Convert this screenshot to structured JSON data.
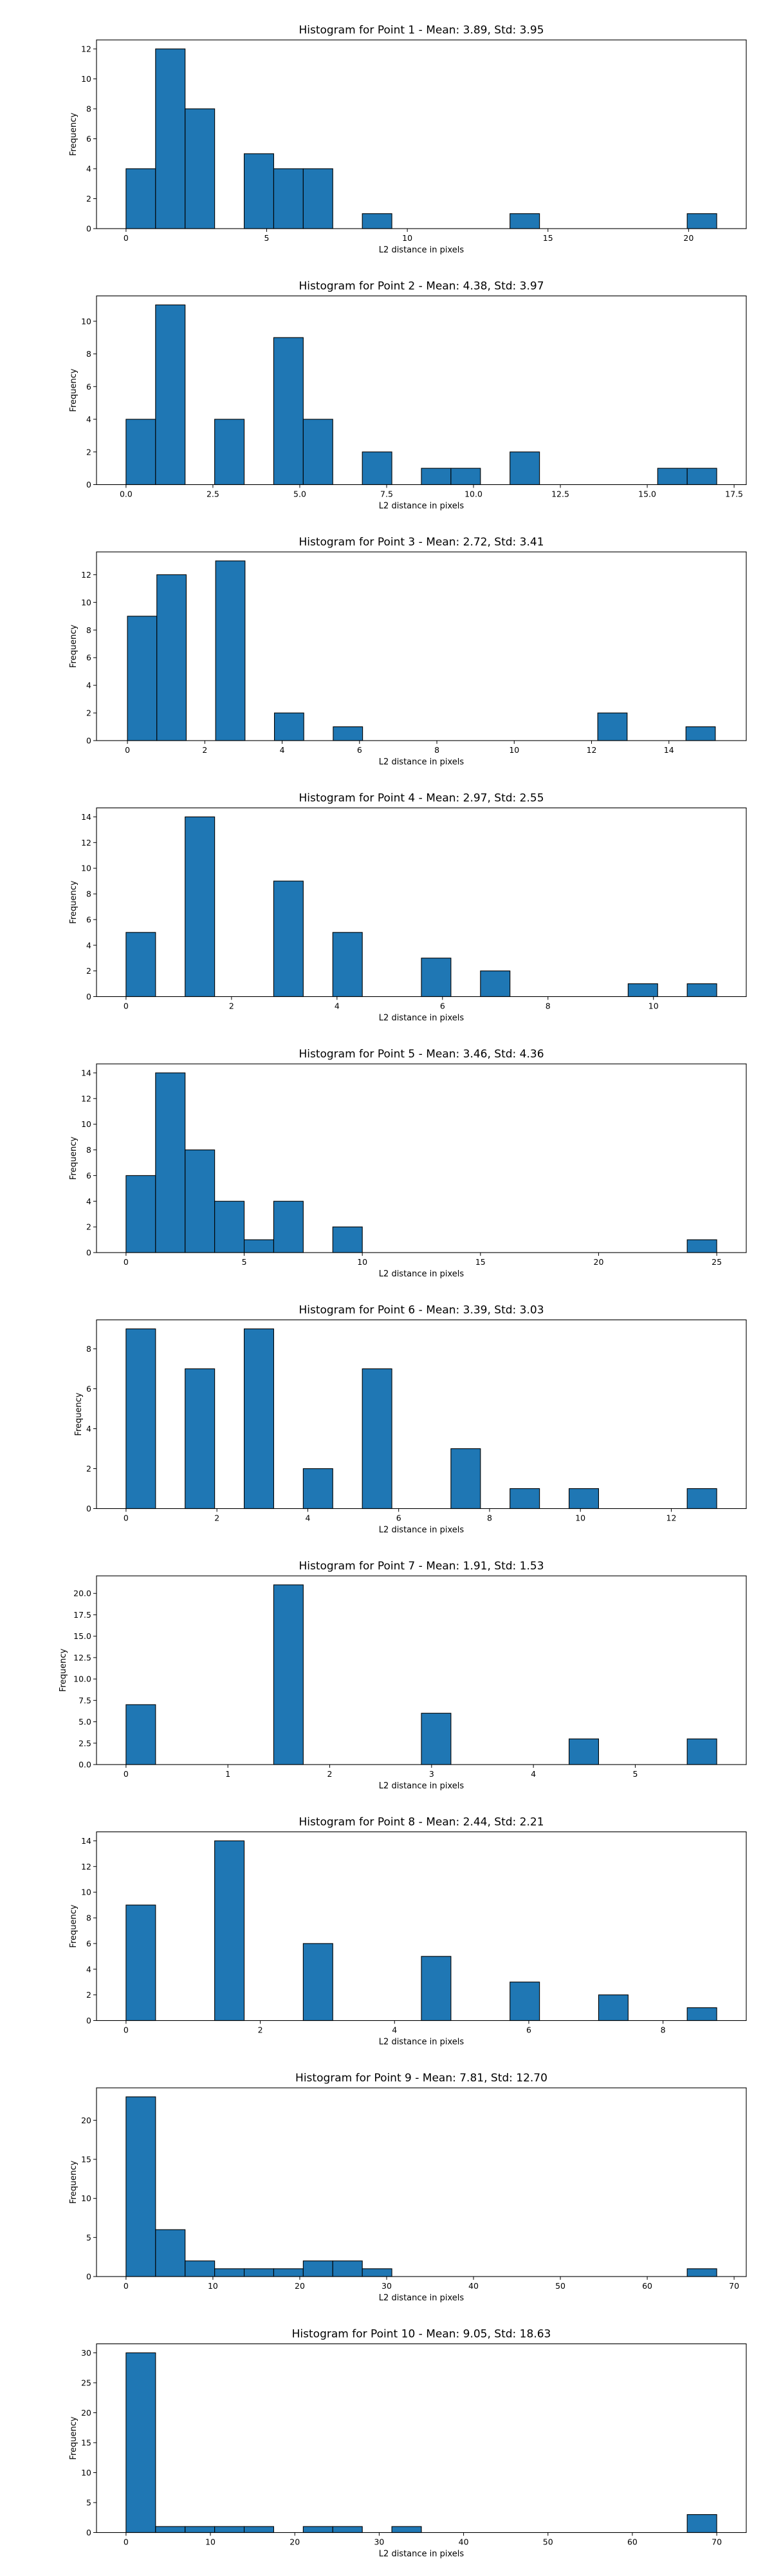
{
  "chart_data": [
    {
      "type": "bar",
      "title": "Histogram for Point 1 - Mean: 3.89, Std: 3.95",
      "xlabel": "L2 distance in pixels",
      "ylabel": "Frequency",
      "xlim": [
        -1.05,
        22.05
      ],
      "ylim": [
        0,
        12.6
      ],
      "xticks": [
        0,
        5,
        10,
        15,
        20
      ],
      "xtick_labels": [
        "0",
        "5",
        "10",
        "15",
        "20"
      ],
      "yticks": [
        0,
        2,
        4,
        6,
        8,
        10,
        12
      ],
      "ytick_labels": [
        "0",
        "2",
        "4",
        "6",
        "8",
        "10",
        "12"
      ],
      "bin_edges": [
        0.0,
        1.05,
        2.1,
        3.15,
        4.2,
        5.25,
        6.3,
        7.35,
        8.4,
        9.45,
        10.5,
        11.55,
        12.6,
        13.65,
        14.7,
        15.75,
        16.8,
        17.85,
        18.9,
        19.95,
        21.0
      ],
      "values": [
        4,
        12,
        8,
        0,
        5,
        4,
        4,
        0,
        1,
        0,
        0,
        0,
        0,
        1,
        0,
        0,
        0,
        0,
        0,
        1
      ],
      "grid": false,
      "legend": false
    },
    {
      "type": "bar",
      "title": "Histogram for Point 2 - Mean: 4.38, Std: 3.97",
      "xlabel": "L2 distance in pixels",
      "ylabel": "Frequency",
      "xlim": [
        -0.85,
        17.85
      ],
      "ylim": [
        0,
        11.55
      ],
      "xticks": [
        0,
        2.5,
        5,
        7.5,
        10,
        12.5,
        15,
        17.5
      ],
      "xtick_labels": [
        "0.0",
        "2.5",
        "5.0",
        "7.5",
        "10.0",
        "12.5",
        "15.0",
        "17.5"
      ],
      "yticks": [
        0,
        2,
        4,
        6,
        8,
        10
      ],
      "ytick_labels": [
        "0",
        "2",
        "4",
        "6",
        "8",
        "10"
      ],
      "bin_edges": [
        0.0,
        0.85,
        1.7,
        2.55,
        3.4,
        4.25,
        5.1,
        5.95,
        6.8,
        7.65,
        8.5,
        9.35,
        10.2,
        11.05,
        11.9,
        12.75,
        13.6,
        14.45,
        15.3,
        16.15,
        17.0
      ],
      "values": [
        4,
        11,
        0,
        4,
        0,
        9,
        4,
        0,
        2,
        0,
        1,
        1,
        0,
        2,
        0,
        0,
        0,
        0,
        1,
        1
      ],
      "grid": false,
      "legend": false
    },
    {
      "type": "bar",
      "title": "Histogram for Point 3 - Mean: 2.72, Std: 3.41",
      "xlabel": "L2 distance in pixels",
      "ylabel": "Frequency",
      "xlim": [
        -0.8,
        16.0
      ],
      "ylim": [
        0,
        13.65
      ],
      "xticks": [
        0,
        2,
        4,
        6,
        8,
        10,
        12,
        14
      ],
      "xtick_labels": [
        "0",
        "2",
        "4",
        "6",
        "8",
        "10",
        "12",
        "14"
      ],
      "yticks": [
        0,
        2,
        4,
        6,
        8,
        10,
        12
      ],
      "ytick_labels": [
        "0",
        "2",
        "4",
        "6",
        "8",
        "10",
        "12"
      ],
      "bin_edges": [
        0.0,
        0.76,
        1.52,
        2.28,
        3.04,
        3.8,
        4.56,
        5.32,
        6.08,
        6.84,
        7.6,
        8.36,
        9.12,
        9.88,
        10.64,
        11.4,
        12.16,
        12.92,
        13.68,
        14.44,
        15.2
      ],
      "values": [
        9,
        12,
        0,
        13,
        0,
        2,
        0,
        1,
        0,
        0,
        0,
        0,
        0,
        0,
        0,
        0,
        2,
        0,
        0,
        1
      ],
      "grid": false,
      "legend": false
    },
    {
      "type": "bar",
      "title": "Histogram for Point 4 - Mean: 2.97, Std: 2.55",
      "xlabel": "L2 distance in pixels",
      "ylabel": "Frequency",
      "xlim": [
        -0.56,
        11.76
      ],
      "ylim": [
        0,
        14.7
      ],
      "xticks": [
        0,
        2,
        4,
        6,
        8,
        10
      ],
      "xtick_labels": [
        "0",
        "2",
        "4",
        "6",
        "8",
        "10"
      ],
      "yticks": [
        0,
        2,
        4,
        6,
        8,
        10,
        12,
        14
      ],
      "ytick_labels": [
        "0",
        "2",
        "4",
        "6",
        "8",
        "10",
        "12",
        "14"
      ],
      "bin_edges": [
        0.0,
        0.56,
        1.12,
        1.68,
        2.24,
        2.8,
        3.36,
        3.92,
        4.48,
        5.04,
        5.6,
        6.16,
        6.72,
        7.28,
        7.84,
        8.4,
        8.96,
        9.52,
        10.08,
        10.64,
        11.2
      ],
      "values": [
        5,
        0,
        14,
        0,
        0,
        9,
        0,
        5,
        0,
        0,
        3,
        0,
        2,
        0,
        0,
        0,
        0,
        1,
        0,
        1
      ],
      "grid": false,
      "legend": false
    },
    {
      "type": "bar",
      "title": "Histogram for Point 5 - Mean: 3.46, Std: 4.36",
      "xlabel": "L2 distance in pixels",
      "ylabel": "Frequency",
      "xlim": [
        -1.25,
        26.25
      ],
      "ylim": [
        0,
        14.7
      ],
      "xticks": [
        0,
        5,
        10,
        15,
        20,
        25
      ],
      "xtick_labels": [
        "0",
        "5",
        "10",
        "15",
        "20",
        "25"
      ],
      "yticks": [
        0,
        2,
        4,
        6,
        8,
        10,
        12,
        14
      ],
      "ytick_labels": [
        "0",
        "2",
        "4",
        "6",
        "8",
        "10",
        "12",
        "14"
      ],
      "bin_edges": [
        0.0,
        1.25,
        2.5,
        3.75,
        5.0,
        6.25,
        7.5,
        8.75,
        10.0,
        11.25,
        12.5,
        13.75,
        15.0,
        16.25,
        17.5,
        18.75,
        20.0,
        21.25,
        22.5,
        23.75,
        25.0
      ],
      "values": [
        6,
        14,
        8,
        4,
        1,
        4,
        0,
        2,
        0,
        0,
        0,
        0,
        0,
        0,
        0,
        0,
        0,
        0,
        0,
        1
      ],
      "grid": false,
      "legend": false
    },
    {
      "type": "bar",
      "title": "Histogram for Point 6 - Mean: 3.39, Std: 3.03",
      "xlabel": "L2 distance in pixels",
      "ylabel": "Frequency",
      "xlim": [
        -0.65,
        13.65
      ],
      "ylim": [
        0,
        9.45
      ],
      "xticks": [
        0,
        2,
        4,
        6,
        8,
        10,
        12
      ],
      "xtick_labels": [
        "0",
        "2",
        "4",
        "6",
        "8",
        "10",
        "12"
      ],
      "yticks": [
        0,
        2,
        4,
        6,
        8
      ],
      "ytick_labels": [
        "0",
        "2",
        "4",
        "6",
        "8"
      ],
      "bin_edges": [
        0.0,
        0.65,
        1.3,
        1.95,
        2.6,
        3.25,
        3.9,
        4.55,
        5.2,
        5.85,
        6.5,
        7.15,
        7.8,
        8.45,
        9.1,
        9.75,
        10.4,
        11.05,
        11.7,
        12.35,
        13.0
      ],
      "values": [
        9,
        0,
        7,
        0,
        9,
        0,
        2,
        0,
        7,
        0,
        0,
        3,
        0,
        1,
        0,
        1,
        0,
        0,
        0,
        1
      ],
      "grid": false,
      "legend": false
    },
    {
      "type": "bar",
      "title": "Histogram for Point 7 - Mean: 1.91, Std: 1.53",
      "xlabel": "L2 distance in pixels",
      "ylabel": "Frequency",
      "xlim": [
        -0.29,
        6.09
      ],
      "ylim": [
        0,
        22.05
      ],
      "xticks": [
        0,
        1,
        2,
        3,
        4,
        5
      ],
      "xtick_labels": [
        "0",
        "1",
        "2",
        "3",
        "4",
        "5"
      ],
      "yticks": [
        0,
        2.5,
        5,
        7.5,
        10,
        12.5,
        15,
        17.5,
        20
      ],
      "ytick_labels": [
        "0.0",
        "2.5",
        "5.0",
        "7.5",
        "10.0",
        "12.5",
        "15.0",
        "17.5",
        "20.0"
      ],
      "bin_edges": [
        0.0,
        0.29,
        0.58,
        0.87,
        1.16,
        1.45,
        1.74,
        2.03,
        2.32,
        2.61,
        2.9,
        3.19,
        3.48,
        3.77,
        4.06,
        4.35,
        4.64,
        4.93,
        5.22,
        5.51,
        5.8
      ],
      "values": [
        7,
        0,
        0,
        0,
        0,
        21,
        0,
        0,
        0,
        0,
        6,
        0,
        0,
        0,
        0,
        3,
        0,
        0,
        0,
        3
      ],
      "grid": false,
      "legend": false
    },
    {
      "type": "bar",
      "title": "Histogram for Point 8 - Mean: 2.44, Std: 2.21",
      "xlabel": "L2 distance in pixels",
      "ylabel": "Frequency",
      "xlim": [
        -0.44,
        9.24
      ],
      "ylim": [
        0,
        14.7
      ],
      "xticks": [
        0,
        2,
        4,
        6,
        8
      ],
      "xtick_labels": [
        "0",
        "2",
        "4",
        "6",
        "8"
      ],
      "yticks": [
        0,
        2,
        4,
        6,
        8,
        10,
        12,
        14
      ],
      "ytick_labels": [
        "0",
        "2",
        "4",
        "6",
        "8",
        "10",
        "12",
        "14"
      ],
      "bin_edges": [
        0.0,
        0.44,
        0.88,
        1.32,
        1.76,
        2.2,
        2.64,
        3.08,
        3.52,
        3.96,
        4.4,
        4.84,
        5.28,
        5.72,
        6.16,
        6.6,
        7.04,
        7.48,
        7.92,
        8.36,
        8.8
      ],
      "values": [
        9,
        0,
        0,
        14,
        0,
        0,
        6,
        0,
        0,
        0,
        5,
        0,
        0,
        3,
        0,
        0,
        2,
        0,
        0,
        1
      ],
      "grid": false,
      "legend": false
    },
    {
      "type": "bar",
      "title": "Histogram for Point 9 - Mean: 7.81, Std: 12.70",
      "xlabel": "L2 distance in pixels",
      "ylabel": "Frequency",
      "xlim": [
        -3.4,
        71.4
      ],
      "ylim": [
        0,
        24.15
      ],
      "xticks": [
        0,
        10,
        20,
        30,
        40,
        50,
        60,
        70
      ],
      "xtick_labels": [
        "0",
        "10",
        "20",
        "30",
        "40",
        "50",
        "60",
        "70"
      ],
      "yticks": [
        0,
        5,
        10,
        15,
        20
      ],
      "ytick_labels": [
        "0",
        "5",
        "10",
        "15",
        "20"
      ],
      "bin_edges": [
        0.0,
        3.4,
        6.8,
        10.2,
        13.6,
        17.0,
        20.4,
        23.8,
        27.2,
        30.6,
        34.0,
        37.4,
        40.8,
        44.2,
        47.6,
        51.0,
        54.4,
        57.8,
        61.2,
        64.6,
        68.0
      ],
      "values": [
        23,
        6,
        2,
        1,
        1,
        1,
        2,
        2,
        1,
        0,
        0,
        0,
        0,
        0,
        0,
        0,
        0,
        0,
        0,
        1
      ],
      "grid": false,
      "legend": false
    },
    {
      "type": "bar",
      "title": "Histogram for Point 10 - Mean: 9.05, Std: 18.63",
      "xlabel": "L2 distance in pixels",
      "ylabel": "Frequency",
      "xlim": [
        -3.5,
        73.5
      ],
      "ylim": [
        0,
        31.5
      ],
      "xticks": [
        0,
        10,
        20,
        30,
        40,
        50,
        60,
        70
      ],
      "xtick_labels": [
        "0",
        "10",
        "20",
        "30",
        "40",
        "50",
        "60",
        "70"
      ],
      "yticks": [
        0,
        5,
        10,
        15,
        20,
        25,
        30
      ],
      "ytick_labels": [
        "0",
        "5",
        "10",
        "15",
        "20",
        "25",
        "30"
      ],
      "bin_edges": [
        0.0,
        3.5,
        7.0,
        10.5,
        14.0,
        17.5,
        21.0,
        24.5,
        28.0,
        31.5,
        35.0,
        38.5,
        42.0,
        45.5,
        49.0,
        52.5,
        56.0,
        59.5,
        63.0,
        66.5,
        70.0
      ],
      "values": [
        30,
        1,
        1,
        1,
        1,
        0,
        1,
        1,
        0,
        1,
        0,
        0,
        0,
        0,
        0,
        0,
        0,
        0,
        0,
        3
      ],
      "grid": false,
      "legend": false
    }
  ],
  "colors": {
    "bar_fill": "#1f77b4",
    "bar_edge": "#000000",
    "background": "#ffffff"
  }
}
